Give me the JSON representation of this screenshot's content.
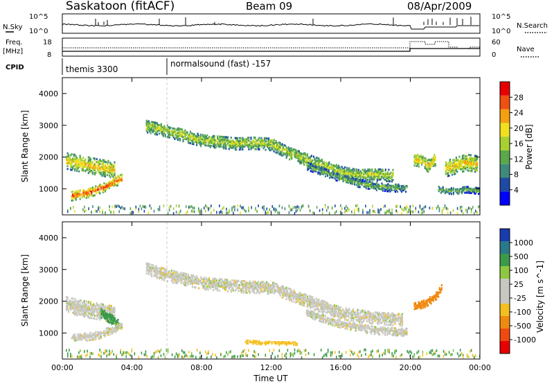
{
  "header": {
    "station": "Saskatoon (fitACF)",
    "beam": "Beam 09",
    "date": "08/Apr/2009"
  },
  "noise_panel": {
    "left_label": "N.Sky",
    "right_label": "N.Search",
    "left_ticks": [
      "10^5",
      "10^0"
    ],
    "right_ticks": [
      "10^5",
      "10^0"
    ]
  },
  "freq_panel": {
    "left_label_1": "Freq.",
    "left_label_2": "[MHz]",
    "right_label": "Nave",
    "left_ticks": [
      "18",
      "8"
    ],
    "right_ticks": [
      "60",
      "0"
    ]
  },
  "cpid_panel": {
    "label": "CPID",
    "programs": [
      {
        "name": "themis 3300",
        "start_hour": 0
      },
      {
        "name": "normalsound (fast) -157",
        "start_hour": 6
      }
    ]
  },
  "colors": {
    "power": [
      "#0000ff",
      "#1e4aa6",
      "#3f8a7a",
      "#5aa84a",
      "#a8d030",
      "#f0e020",
      "#f4a010",
      "#f05010",
      "#e80000"
    ],
    "velocity": [
      "#e80000",
      "#f04a10",
      "#f08a10",
      "#f4c020",
      "#c8c8c0",
      "#c8c8c0",
      "#8ec840",
      "#3a9a4a",
      "#2a7a8a",
      "#1a3ab0"
    ]
  },
  "chart_data": [
    {
      "type": "heatmap",
      "title": "Power",
      "xlabel": "Time UT",
      "ylabel": "Slant Range [km]",
      "xlim": [
        0,
        24
      ],
      "ylim": [
        180,
        4500
      ],
      "x_ticks": [
        "00:00",
        "04:00",
        "08:00",
        "12:00",
        "16:00",
        "20:00",
        "00:00"
      ],
      "y_ticks": [
        1000,
        2000,
        3000,
        4000
      ],
      "colorbar": {
        "label": "Power [dB]",
        "ticks": [
          "28",
          "24",
          "20",
          "16",
          "12",
          "8",
          "4"
        ],
        "range": [
          0,
          30
        ]
      },
      "echo_bands": [
        {
          "t": [
            0.2,
            0.6,
            1.0,
            1.6,
            2.0,
            2.6,
            3.0
          ],
          "range_km": [
            1850,
            1800,
            1760,
            1700,
            1650,
            1600,
            1550
          ],
          "width_km": 500,
          "power_db": 20
        },
        {
          "t": [
            0.5,
            1.0,
            1.5,
            2.0,
            2.5,
            3.0,
            3.4
          ],
          "range_km": [
            750,
            800,
            850,
            950,
            1050,
            1200,
            1300
          ],
          "width_km": 300,
          "power_db": 26
        },
        {
          "t": [
            4.8,
            6.0,
            8.0,
            9.0,
            10.0,
            11.0,
            12.0,
            13.0,
            14.0,
            15.0,
            16.0,
            17.0,
            18.0,
            19.0
          ],
          "range_km": [
            2950,
            2800,
            2500,
            2450,
            2400,
            2420,
            2380,
            2100,
            1900,
            1700,
            1500,
            1400,
            1420,
            1400
          ],
          "width_km": 400,
          "power_db": 16
        },
        {
          "t": [
            14.0,
            15.0,
            16.0,
            17.0,
            18.0,
            19.0,
            19.8
          ],
          "range_km": [
            1700,
            1500,
            1300,
            1150,
            1050,
            1000,
            1000
          ],
          "width_km": 250,
          "power_db": 12
        },
        {
          "t": [
            20.2,
            20.6,
            21.0,
            21.4
          ],
          "range_km": [
            1900,
            1850,
            1700,
            1900
          ],
          "width_km": 400,
          "power_db": 20
        },
        {
          "t": [
            22.0,
            22.6,
            23.2,
            23.8
          ],
          "range_km": [
            1600,
            1700,
            1800,
            1750
          ],
          "width_km": 500,
          "power_db": 20
        },
        {
          "t": [
            21.6,
            22.4,
            23.2,
            24.0
          ],
          "range_km": [
            950,
            900,
            950,
            900
          ],
          "width_km": 200,
          "power_db": 12
        }
      ]
    },
    {
      "type": "heatmap",
      "title": "Velocity",
      "xlabel": "Time UT",
      "ylabel": "Slant Range [km]",
      "xlim": [
        0,
        24
      ],
      "ylim": [
        180,
        4500
      ],
      "x_ticks": [
        "00:00",
        "04:00",
        "08:00",
        "12:00",
        "16:00",
        "20:00",
        "00:00"
      ],
      "y_ticks": [
        1000,
        2000,
        3000,
        4000
      ],
      "colorbar": {
        "label": "Velocity [m s^-1]",
        "ticks": [
          "1000",
          "500",
          "100",
          "25",
          "-25",
          "-100",
          "-500",
          "-1000"
        ]
      },
      "echo_bands": [
        {
          "t": [
            0.2,
            1.0,
            2.0,
            3.0
          ],
          "range_km": [
            1850,
            1750,
            1650,
            1550
          ],
          "width_km": 500,
          "velocity": 0
        },
        {
          "t": [
            2.2,
            2.8,
            3.2
          ],
          "range_km": [
            1600,
            1400,
            1300
          ],
          "width_km": 300,
          "velocity": 150
        },
        {
          "t": [
            0.5,
            2.0,
            3.4
          ],
          "range_km": [
            800,
            900,
            1200
          ],
          "width_km": 250,
          "velocity": 0
        },
        {
          "t": [
            4.8,
            6.0,
            8.0,
            10.0,
            12.0,
            14.0,
            16.0,
            18.0,
            19.5
          ],
          "range_km": [
            3000,
            2800,
            2550,
            2450,
            2400,
            2000,
            1600,
            1450,
            1400
          ],
          "width_km": 400,
          "velocity": 0
        },
        {
          "t": [
            14.0,
            16.0,
            18.0,
            19.8
          ],
          "range_km": [
            1600,
            1250,
            1050,
            1000
          ],
          "width_km": 250,
          "velocity": 0
        },
        {
          "t": [
            20.2,
            20.8,
            21.4,
            21.8
          ],
          "range_km": [
            1800,
            1900,
            2100,
            2400
          ],
          "width_km": 250,
          "velocity": -250
        },
        {
          "t": [
            10.5,
            12.0,
            13.5
          ],
          "range_km": [
            700,
            650,
            650
          ],
          "width_km": 120,
          "velocity": -60
        }
      ]
    }
  ]
}
